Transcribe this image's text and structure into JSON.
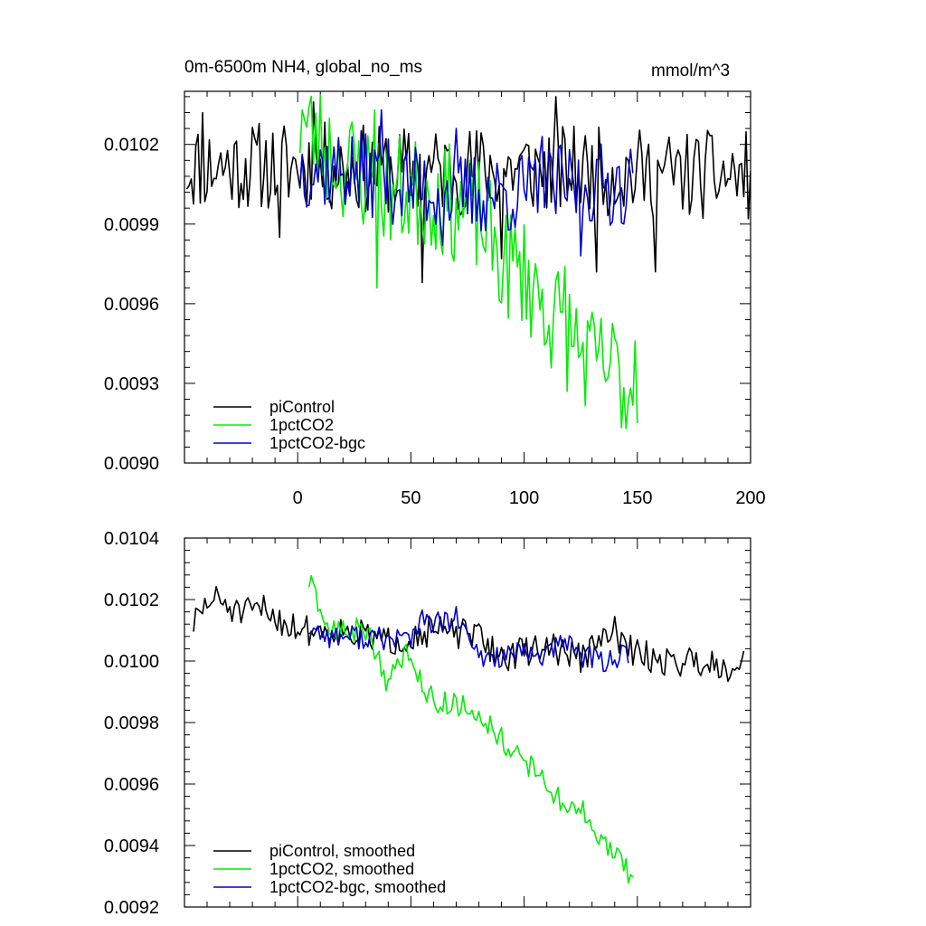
{
  "chart_data": [
    {
      "type": "line",
      "title": "0m-6500m NH4, global_no_ms",
      "units_label": "mmol/m^3",
      "xlim": [
        -50,
        200
      ],
      "ylim": [
        0.009,
        0.0104
      ],
      "x_ticks": [
        "0",
        "50",
        "100",
        "150",
        "200"
      ],
      "x_tick_values": [
        0,
        50,
        100,
        150,
        200
      ],
      "y_ticks": [
        "0.0090",
        "0.0093",
        "0.0096",
        "0.0099",
        "0.0102"
      ],
      "y_tick_values": [
        0.009,
        0.0093,
        0.0096,
        0.0099,
        0.0102
      ],
      "grid": false,
      "legend_position": "bottom-left",
      "series": [
        {
          "name": "piControl",
          "color": "#000000",
          "x_start": -49,
          "x_end": 200,
          "noise": 0.00017,
          "seed": 11,
          "anchors": [
            [
              -49,
              0.01012
            ],
            [
              0,
              0.01012
            ],
            [
              50,
              0.0101
            ],
            [
              100,
              0.01011
            ],
            [
              150,
              0.01009
            ],
            [
              200,
              0.01008
            ]
          ],
          "spikes": [
            [
              -42,
              0.01032
            ],
            [
              7,
              0.01036
            ],
            [
              -8,
              0.00985
            ],
            [
              158,
              0.00972
            ],
            [
              114,
              0.01038
            ],
            [
              90,
              0.00977
            ],
            [
              132,
              0.00972
            ],
            [
              55,
              0.00968
            ]
          ]
        },
        {
          "name": "1pctCO2",
          "color": "#00ee00",
          "x_start": 1,
          "x_end": 150,
          "noise": 0.00022,
          "seed": 23,
          "anchors": [
            [
              1,
              0.01028
            ],
            [
              20,
              0.01013
            ],
            [
              40,
              0.01003
            ],
            [
              60,
              0.01001
            ],
            [
              80,
              0.00993
            ],
            [
              90,
              0.00976
            ],
            [
              100,
              0.00972
            ],
            [
              110,
              0.00958
            ],
            [
              120,
              0.00948
            ],
            [
              130,
              0.00937
            ],
            [
              140,
              0.00935
            ],
            [
              150,
              0.00928
            ]
          ],
          "spikes": [
            [
              2,
              0.01033
            ],
            [
              34,
              0.01033
            ],
            [
              35,
              0.00966
            ],
            [
              118,
              0.00974
            ],
            [
              145,
              0.00913
            ],
            [
              150,
              0.00915
            ],
            [
              149,
              0.00946
            ]
          ]
        },
        {
          "name": "1pctCO2-bgc",
          "color": "#0000cc",
          "x_start": 1,
          "x_end": 148,
          "noise": 0.00016,
          "seed": 37,
          "anchors": [
            [
              1,
              0.01012
            ],
            [
              25,
              0.0101
            ],
            [
              50,
              0.01004
            ],
            [
              75,
              0.01001
            ],
            [
              100,
              0.01002
            ],
            [
              125,
              0.01005
            ],
            [
              148,
              0.01005
            ]
          ],
          "spikes": [
            [
              37,
              0.01033
            ],
            [
              64,
              0.00982
            ],
            [
              70,
              0.01026
            ],
            [
              108,
              0.01023
            ],
            [
              125,
              0.00978
            ]
          ]
        }
      ]
    },
    {
      "type": "line",
      "title": "",
      "xlim": [
        -50,
        200
      ],
      "ylim": [
        0.0092,
        0.0104
      ],
      "y_ticks": [
        "0.0092",
        "0.0094",
        "0.0096",
        "0.0098",
        "0.0100",
        "0.0102",
        "0.0104"
      ],
      "y_tick_values": [
        0.0092,
        0.0094,
        0.0096,
        0.0098,
        0.01,
        0.0102,
        0.0104
      ],
      "grid": false,
      "legend_position": "bottom-left",
      "series": [
        {
          "name": "piControl, smoothed",
          "color": "#000000",
          "x_start": -46,
          "x_end": 197,
          "noise": 5e-05,
          "seed": 51,
          "anchors": [
            [
              -46,
              0.01012
            ],
            [
              -40,
              0.01019
            ],
            [
              -35,
              0.0102
            ],
            [
              -25,
              0.01015
            ],
            [
              -15,
              0.01017
            ],
            [
              -5,
              0.01012
            ],
            [
              5,
              0.0101
            ],
            [
              20,
              0.0101
            ],
            [
              40,
              0.01006
            ],
            [
              60,
              0.0101
            ],
            [
              80,
              0.01008
            ],
            [
              90,
              0.01001
            ],
            [
              110,
              0.01005
            ],
            [
              125,
              0.01001
            ],
            [
              140,
              0.0101
            ],
            [
              145,
              0.01004
            ],
            [
              160,
              0.01
            ],
            [
              170,
              0.01
            ],
            [
              180,
              0.01
            ],
            [
              190,
              0.00998
            ],
            [
              197,
              0.01001
            ]
          ]
        },
        {
          "name": "1pctCO2, smoothed",
          "color": "#00ee00",
          "x_start": 5,
          "x_end": 148,
          "noise": 4e-05,
          "seed": 63,
          "anchors": [
            [
              5,
              0.01026
            ],
            [
              10,
              0.01015
            ],
            [
              15,
              0.0101
            ],
            [
              20,
              0.0101
            ],
            [
              30,
              0.0101
            ],
            [
              35,
              0.01003
            ],
            [
              40,
              0.00992
            ],
            [
              45,
              0.01
            ],
            [
              50,
              0.01004
            ],
            [
              55,
              0.00992
            ],
            [
              60,
              0.00987
            ],
            [
              70,
              0.00986
            ],
            [
              80,
              0.00983
            ],
            [
              90,
              0.00975
            ],
            [
              100,
              0.00966
            ],
            [
              105,
              0.00965
            ],
            [
              115,
              0.00955
            ],
            [
              125,
              0.00952
            ],
            [
              130,
              0.00945
            ],
            [
              140,
              0.00937
            ],
            [
              148,
              0.0093
            ]
          ]
        },
        {
          "name": "1pctCO2-bgc, smoothed",
          "color": "#0000cc",
          "x_start": 5,
          "x_end": 146,
          "noise": 4e-05,
          "seed": 77,
          "anchors": [
            [
              5,
              0.01011
            ],
            [
              15,
              0.01008
            ],
            [
              25,
              0.01008
            ],
            [
              40,
              0.01007
            ],
            [
              50,
              0.01008
            ],
            [
              55,
              0.01013
            ],
            [
              65,
              0.01012
            ],
            [
              70,
              0.01014
            ],
            [
              80,
              0.01001
            ],
            [
              95,
              0.01002
            ],
            [
              110,
              0.01002
            ],
            [
              120,
              0.01007
            ],
            [
              125,
              0.01002
            ],
            [
              135,
              0.01
            ],
            [
              146,
              0.01002
            ]
          ]
        }
      ]
    }
  ]
}
